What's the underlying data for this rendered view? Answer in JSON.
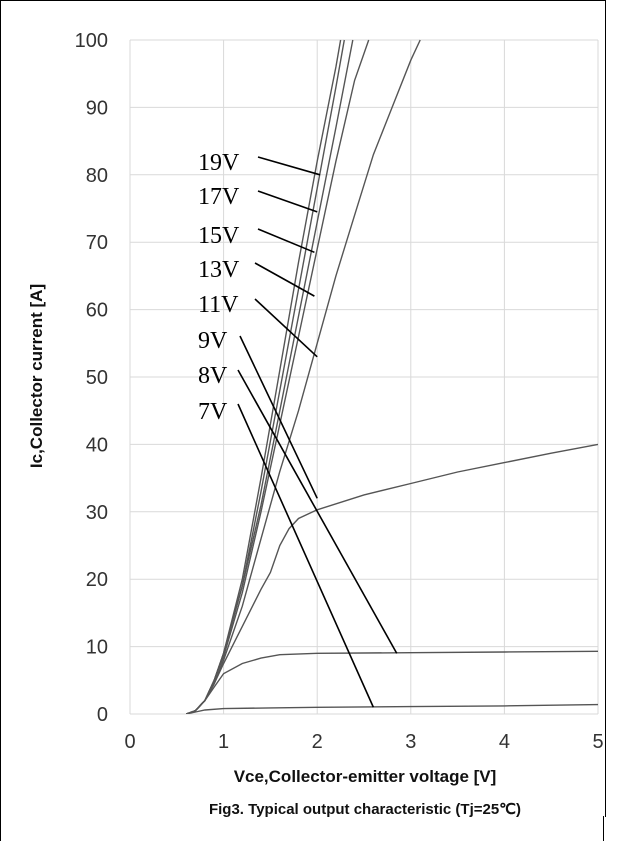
{
  "chart_data": {
    "type": "line",
    "title": "",
    "xlabel": "Vce,Collector-emitter voltage [V]",
    "ylabel": "Ic,Collector current [A]",
    "caption": "Fig3. Typical output characteristic (Tj=25℃)",
    "xlim": [
      0,
      5
    ],
    "ylim": [
      0,
      100
    ],
    "x_ticks": [
      "0",
      "1",
      "2",
      "3",
      "4",
      "5"
    ],
    "y_ticks": [
      "0",
      "10",
      "20",
      "30",
      "40",
      "50",
      "60",
      "70",
      "80",
      "90",
      "100"
    ],
    "grid": true,
    "line_color": "#555555",
    "series": [
      {
        "name": "19V",
        "points": [
          [
            0.6,
            0
          ],
          [
            0.7,
            0.5
          ],
          [
            0.8,
            2
          ],
          [
            0.9,
            5
          ],
          [
            1.0,
            9
          ],
          [
            1.2,
            20
          ],
          [
            1.4,
            35
          ],
          [
            1.6,
            51
          ],
          [
            1.8,
            67
          ],
          [
            2.0,
            82
          ],
          [
            2.2,
            96
          ],
          [
            2.25,
            100
          ]
        ]
      },
      {
        "name": "17V",
        "points": [
          [
            0.6,
            0
          ],
          [
            0.7,
            0.5
          ],
          [
            0.8,
            2
          ],
          [
            0.9,
            5
          ],
          [
            1.0,
            9
          ],
          [
            1.2,
            19
          ],
          [
            1.4,
            33
          ],
          [
            1.6,
            48
          ],
          [
            1.8,
            63
          ],
          [
            2.0,
            78
          ],
          [
            2.2,
            93
          ],
          [
            2.29,
            100
          ]
        ]
      },
      {
        "name": "15V",
        "points": [
          [
            0.6,
            0
          ],
          [
            0.7,
            0.5
          ],
          [
            0.8,
            2
          ],
          [
            0.9,
            5
          ],
          [
            1.0,
            9
          ],
          [
            1.2,
            19
          ],
          [
            1.4,
            31
          ],
          [
            1.6,
            45
          ],
          [
            1.8,
            59
          ],
          [
            2.0,
            73
          ],
          [
            2.2,
            87
          ],
          [
            2.38,
            100
          ]
        ]
      },
      {
        "name": "13V",
        "points": [
          [
            0.6,
            0
          ],
          [
            0.7,
            0.5
          ],
          [
            0.8,
            2
          ],
          [
            0.9,
            5
          ],
          [
            1.0,
            8.5
          ],
          [
            1.2,
            18
          ],
          [
            1.4,
            30
          ],
          [
            1.6,
            43
          ],
          [
            1.8,
            56
          ],
          [
            2.0,
            69
          ],
          [
            2.2,
            82
          ],
          [
            2.4,
            94
          ],
          [
            2.55,
            100
          ]
        ]
      },
      {
        "name": "11V",
        "points": [
          [
            0.6,
            0
          ],
          [
            0.7,
            0.5
          ],
          [
            0.8,
            2
          ],
          [
            0.9,
            4.5
          ],
          [
            1.0,
            8
          ],
          [
            1.2,
            16
          ],
          [
            1.4,
            26
          ],
          [
            1.6,
            36
          ],
          [
            1.8,
            45
          ],
          [
            2.0,
            55
          ],
          [
            2.2,
            65
          ],
          [
            2.4,
            74
          ],
          [
            2.6,
            83
          ],
          [
            2.8,
            90
          ],
          [
            3.0,
            97
          ],
          [
            3.1,
            100
          ]
        ]
      },
      {
        "name": "9V",
        "points": [
          [
            0.6,
            0
          ],
          [
            0.7,
            0.5
          ],
          [
            0.8,
            2
          ],
          [
            0.9,
            4.5
          ],
          [
            1.0,
            7.5
          ],
          [
            1.2,
            13
          ],
          [
            1.4,
            18.5
          ],
          [
            1.5,
            21
          ],
          [
            1.6,
            25
          ],
          [
            1.7,
            27.5
          ],
          [
            1.8,
            29
          ],
          [
            2.0,
            30.3
          ],
          [
            2.5,
            32.5
          ],
          [
            3.0,
            34.2
          ],
          [
            3.5,
            35.9
          ],
          [
            4.0,
            37.3
          ],
          [
            4.5,
            38.7
          ],
          [
            5.0,
            40
          ]
        ]
      },
      {
        "name": "8V",
        "points": [
          [
            0.6,
            0
          ],
          [
            0.7,
            0.5
          ],
          [
            0.8,
            2
          ],
          [
            0.9,
            4
          ],
          [
            1.0,
            6
          ],
          [
            1.2,
            7.5
          ],
          [
            1.4,
            8.3
          ],
          [
            1.6,
            8.8
          ],
          [
            2.0,
            9.0
          ],
          [
            3.0,
            9.1
          ],
          [
            4.0,
            9.2
          ],
          [
            5.0,
            9.3
          ]
        ]
      },
      {
        "name": "7V",
        "points": [
          [
            0.6,
            0
          ],
          [
            0.7,
            0.3
          ],
          [
            0.8,
            0.6
          ],
          [
            1.0,
            0.8
          ],
          [
            1.5,
            0.9
          ],
          [
            2.0,
            1.0
          ],
          [
            3.0,
            1.1
          ],
          [
            4.0,
            1.2
          ],
          [
            5.0,
            1.4
          ]
        ]
      }
    ],
    "annotations": [
      {
        "text": "19V",
        "value": [
          2.03,
          80
        ]
      },
      {
        "text": "17V",
        "value": [
          2.0,
          74.5
        ]
      },
      {
        "text": "15V",
        "value": [
          1.97,
          68.5
        ]
      },
      {
        "text": "13V",
        "value": [
          1.97,
          62
        ]
      },
      {
        "text": "11V",
        "value": [
          2.0,
          53
        ]
      },
      {
        "text": "9V",
        "value": [
          2.0,
          32
        ]
      },
      {
        "text": "8V",
        "value": [
          2.85,
          9
        ]
      },
      {
        "text": "7V",
        "value": [
          2.6,
          1
        ]
      }
    ]
  }
}
